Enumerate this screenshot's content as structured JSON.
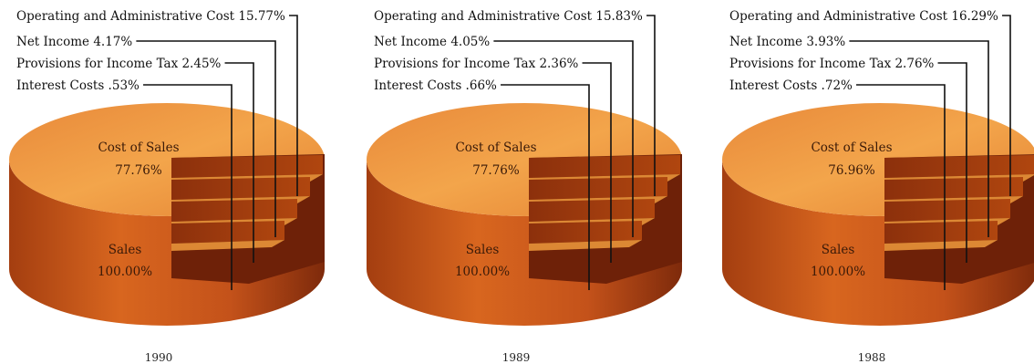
{
  "chart_data": [
    {
      "type": "pie",
      "year": "1990",
      "slices": [
        {
          "label": "Operating and Administrative Cost",
          "value_text": "15.77%",
          "value": 15.77
        },
        {
          "label": "Net Income",
          "value_text": "4.17%",
          "value": 4.17
        },
        {
          "label": "Provisions for Income Tax",
          "value_text": "2.45%",
          "value": 2.45
        },
        {
          "label": "Interest Costs",
          "value_text": ".53%",
          "value": 0.53
        }
      ],
      "cost_of_sales": {
        "label": "Cost of Sales",
        "value_text": "77.76%",
        "value": 77.76
      },
      "sales": {
        "label": "Sales",
        "value_text": "100.00%",
        "value": 100.0
      }
    },
    {
      "type": "pie",
      "year": "1989",
      "slices": [
        {
          "label": "Operating and Administrative Cost",
          "value_text": "15.83%",
          "value": 15.83
        },
        {
          "label": "Net Income",
          "value_text": "4.05%",
          "value": 4.05
        },
        {
          "label": "Provisions for Income Tax",
          "value_text": "2.36%",
          "value": 2.36
        },
        {
          "label": "Interest Costs",
          "value_text": ".66%",
          "value": 0.66
        }
      ],
      "cost_of_sales": {
        "label": "Cost of Sales",
        "value_text": "77.76%",
        "value": 77.76
      },
      "sales": {
        "label": "Sales",
        "value_text": "100.00%",
        "value": 100.0
      }
    },
    {
      "type": "pie",
      "year": "1988",
      "slices": [
        {
          "label": "Operating and Administrative Cost",
          "value_text": "16.29%",
          "value": 16.29
        },
        {
          "label": "Net Income",
          "value_text": "3.93%",
          "value": 3.93
        },
        {
          "label": "Provisions for Income Tax",
          "value_text": "2.76%",
          "value": 2.76
        },
        {
          "label": "Interest Costs",
          "value_text": ".72%",
          "value": 0.72
        }
      ],
      "cost_of_sales": {
        "label": "Cost of Sales",
        "value_text": "76.96%",
        "value": 76.96
      },
      "sales": {
        "label": "Sales",
        "value_text": "100.00%",
        "value": 100.0
      }
    }
  ],
  "colors": {
    "top": "#f09a3c",
    "top_light": "#f6b25a",
    "side": "#c9581c",
    "side_dark": "#8a2e0c",
    "step": "#a8420f",
    "step_dark": "#6e2108",
    "leader": "#111111"
  }
}
